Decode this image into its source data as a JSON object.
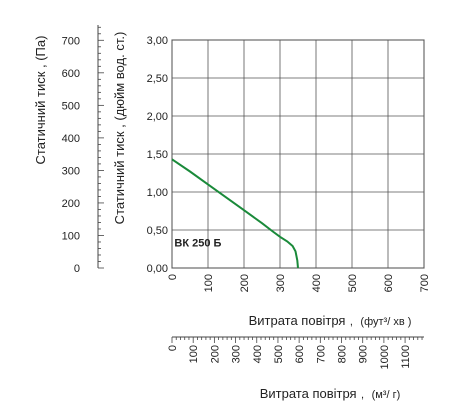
{
  "chart_data": {
    "type": "line",
    "grid": true,
    "x": {
      "label": "Витрата повітря",
      "unit": "(фут³/ хв )",
      "range": [
        0,
        700
      ],
      "ticks": [
        "0",
        "100",
        "200",
        "300",
        "400",
        "500",
        "600",
        "700"
      ]
    },
    "x2": {
      "label": "Витрата повітря",
      "unit": "(м³/ г)",
      "range": [
        0,
        1189.3
      ],
      "ticks": [
        "0",
        "100",
        "200",
        "300",
        "400",
        "500",
        "600",
        "700",
        "800",
        "900",
        "1000",
        "1100"
      ]
    },
    "y": {
      "label": "Статичний тиск , (дюйм вод. ст.)",
      "range": [
        0,
        3
      ],
      "ticks": [
        "0,00",
        "0,50",
        "1,00",
        "1,50",
        "2,00",
        "2,50",
        "3,00"
      ]
    },
    "y2": {
      "label": "Статичний тиск , (Па)",
      "range": [
        0,
        747
      ],
      "ticks": [
        "0",
        "100",
        "200",
        "300",
        "400",
        "500",
        "600",
        "700"
      ]
    },
    "series": [
      {
        "name": "ВК 250 Б",
        "color": "#1a8a3a",
        "points": [
          [
            0,
            1.43
          ],
          [
            50,
            1.27
          ],
          [
            100,
            1.1
          ],
          [
            150,
            0.93
          ],
          [
            200,
            0.76
          ],
          [
            250,
            0.59
          ],
          [
            280,
            0.48
          ],
          [
            300,
            0.41
          ],
          [
            320,
            0.35
          ],
          [
            335,
            0.29
          ],
          [
            343,
            0.22
          ],
          [
            348,
            0.1
          ],
          [
            350,
            0.0
          ]
        ]
      }
    ]
  }
}
